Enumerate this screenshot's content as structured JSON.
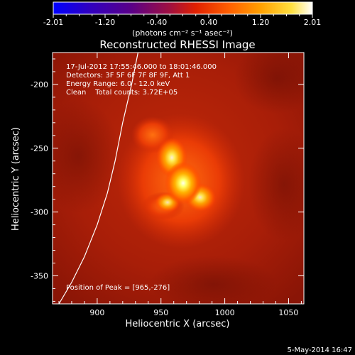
{
  "colorbar": {
    "ticks": [
      "-2.01",
      "-1.20",
      "-0.40",
      "0.40",
      "1.20",
      "2.01"
    ],
    "unit_label": "(photons cm⁻² s⁻¹ asec⁻²)",
    "colormap": [
      "#0000ff",
      "#3000c0",
      "#5a0088",
      "#a01040",
      "#e02000",
      "#ff6000",
      "#ffa000",
      "#ffe040",
      "#ffffff"
    ]
  },
  "chart_data": {
    "type": "heatmap",
    "title": "Reconstructed RHESSI Image",
    "xlabel": "Heliocentric X (arcsec)",
    "ylabel": "Heliocentric Y (arcsec)",
    "xlim": [
      865,
      1062
    ],
    "ylim": [
      -372,
      -175
    ],
    "xticks": [
      900,
      950,
      1000,
      1050
    ],
    "yticks": [
      -200,
      -250,
      -300,
      -350
    ],
    "xtick_labels": [
      "900",
      "950",
      "1000",
      "1050"
    ],
    "ytick_labels": [
      "-200",
      "-250",
      "-300",
      "-350"
    ],
    "info_lines": [
      "17-Jul-2012 17:55:46.000 to 18:01:46.000",
      "Detectors: 3F 5F 6F 7F 8F 9F, Att 1",
      "Energy Range: 6.0 - 12.0 keV",
      "Clean    Total counts: 3.72E+05"
    ],
    "peak_label": "Position of Peak = [965,-276]",
    "peak": [
      965,
      -276
    ],
    "limb_curve": [
      [
        870,
        -372
      ],
      [
        880,
        -355
      ],
      [
        890,
        -335
      ],
      [
        900,
        -310
      ],
      [
        908,
        -285
      ],
      [
        914,
        -260
      ],
      [
        920,
        -230
      ],
      [
        927,
        -200
      ],
      [
        932,
        -175
      ]
    ]
  },
  "footer": {
    "date": "5-May-2014 16:47"
  }
}
